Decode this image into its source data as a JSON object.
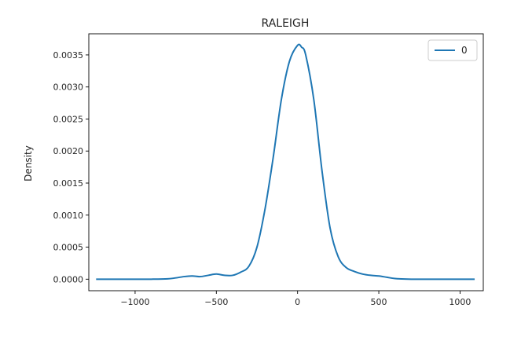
{
  "chart_data": {
    "type": "line",
    "title": "RALEIGH",
    "xlabel": "",
    "ylabel": "Density",
    "xlim": [
      -1285,
      1143
    ],
    "ylim": [
      -0.00018,
      0.00383
    ],
    "xticks": [
      -1000,
      -500,
      0,
      500,
      1000
    ],
    "xtick_labels": [
      "−1000",
      "−500",
      "0",
      "500",
      "1000"
    ],
    "yticks": [
      0.0,
      0.0005,
      0.001,
      0.0015,
      0.002,
      0.0025,
      0.003,
      0.0035
    ],
    "ytick_labels": [
      "0.0000",
      "0.0005",
      "0.0010",
      "0.0015",
      "0.0020",
      "0.0025",
      "0.0030",
      "0.0035"
    ],
    "grid": false,
    "legend": "upper right",
    "series": [
      {
        "name": "0",
        "color": "#1f77b4",
        "x": [
          -1240,
          -1100,
          -1000,
          -900,
          -800,
          -750,
          -700,
          -650,
          -600,
          -550,
          -500,
          -450,
          -400,
          -350,
          -300,
          -250,
          -200,
          -150,
          -100,
          -50,
          0,
          25,
          50,
          100,
          150,
          200,
          250,
          300,
          350,
          400,
          450,
          500,
          550,
          600,
          700,
          800,
          900,
          1000,
          1090
        ],
        "y": [
          0.0,
          0.0,
          0.0,
          0.0,
          5e-06,
          2e-05,
          4e-05,
          5e-05,
          4e-05,
          6e-05,
          8e-05,
          6e-05,
          6e-05,
          0.00011,
          0.0002,
          0.0005,
          0.0011,
          0.0019,
          0.0028,
          0.0034,
          0.00365,
          0.00362,
          0.0035,
          0.0028,
          0.0017,
          0.0008,
          0.00035,
          0.00018,
          0.00012,
          8e-05,
          6e-05,
          5e-05,
          3e-05,
          1e-05,
          0.0,
          0.0,
          0.0,
          0.0,
          0.0
        ]
      }
    ]
  }
}
